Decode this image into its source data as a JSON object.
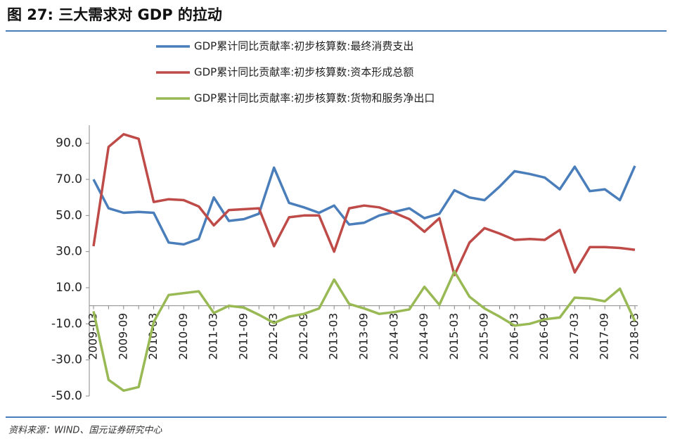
{
  "chart_data": {
    "type": "line",
    "title": "图 27: 三大需求对 GDP 的拉动",
    "source": "资料来源：WIND、国元证券研究中心",
    "categories": [
      "2009-03",
      null,
      "2009-09",
      null,
      "2010-03",
      null,
      "2010-09",
      null,
      "2011-03",
      null,
      "2011-09",
      null,
      "2012-03",
      null,
      "2012-09",
      null,
      "2013-03",
      null,
      "2013-09",
      null,
      "2014-03",
      null,
      "2014-09",
      null,
      "2015-03",
      null,
      "2015-09",
      null,
      "2016-03",
      null,
      "2016-09",
      null,
      "2017-03",
      null,
      "2017-09",
      null,
      "2018-03"
    ],
    "series": [
      {
        "name": "GDP累计同比贡献率:初步核算数:最终消费支出",
        "color": "#4a7ebb",
        "values": [
          70,
          54,
          51.5,
          52,
          51.5,
          35,
          34,
          37,
          60,
          47,
          48,
          51,
          76.5,
          57,
          54.5,
          51.5,
          55.5,
          45,
          46,
          50,
          52,
          54,
          48.5,
          51,
          64,
          60,
          58.5,
          66,
          74.5,
          73,
          71,
          64.5,
          77,
          63.5,
          64.5,
          58.5,
          77.5
        ]
      },
      {
        "name": "GDP累计同比贡献率:初步核算数:资本形成总额",
        "color": "#be4b48",
        "values": [
          33,
          88,
          95,
          92.5,
          57.5,
          59,
          58.5,
          55,
          44.5,
          53,
          53.5,
          54,
          33,
          49,
          50,
          50,
          30,
          54,
          55.5,
          54.5,
          51.5,
          48,
          41,
          48.5,
          17,
          35,
          43,
          40,
          36.5,
          37,
          36.5,
          42,
          18.5,
          32.5,
          32.5,
          32,
          31
        ]
      },
      {
        "name": "GDP累计同比贡献率:初步核算数:货物和服务净出口",
        "color": "#98b954",
        "values": [
          -3,
          -41,
          -47,
          -45,
          -9,
          6,
          7,
          8,
          -4,
          0,
          -1,
          -5,
          -9.5,
          -6,
          -4.5,
          -1.5,
          14.5,
          1,
          -1.5,
          -4.5,
          -3.5,
          -2,
          10.5,
          0.5,
          19,
          5,
          -1.5,
          -6,
          -11,
          -10,
          -7.5,
          -6.5,
          4.5,
          4,
          2.5,
          9.5,
          -8.5
        ]
      }
    ],
    "ylim": [
      -50,
      100
    ],
    "yticks": [
      {
        "value": -50,
        "label": "-50.0"
      },
      {
        "value": -30,
        "label": "-30.0"
      },
      {
        "value": -10,
        "label": "-10.0"
      },
      {
        "value": 10,
        "label": "10.0"
      },
      {
        "value": 30,
        "label": "30.0"
      },
      {
        "value": 50,
        "label": "50.0"
      },
      {
        "value": 70,
        "label": "70.0"
      },
      {
        "value": 90,
        "label": "90.0"
      }
    ],
    "grid": false
  }
}
